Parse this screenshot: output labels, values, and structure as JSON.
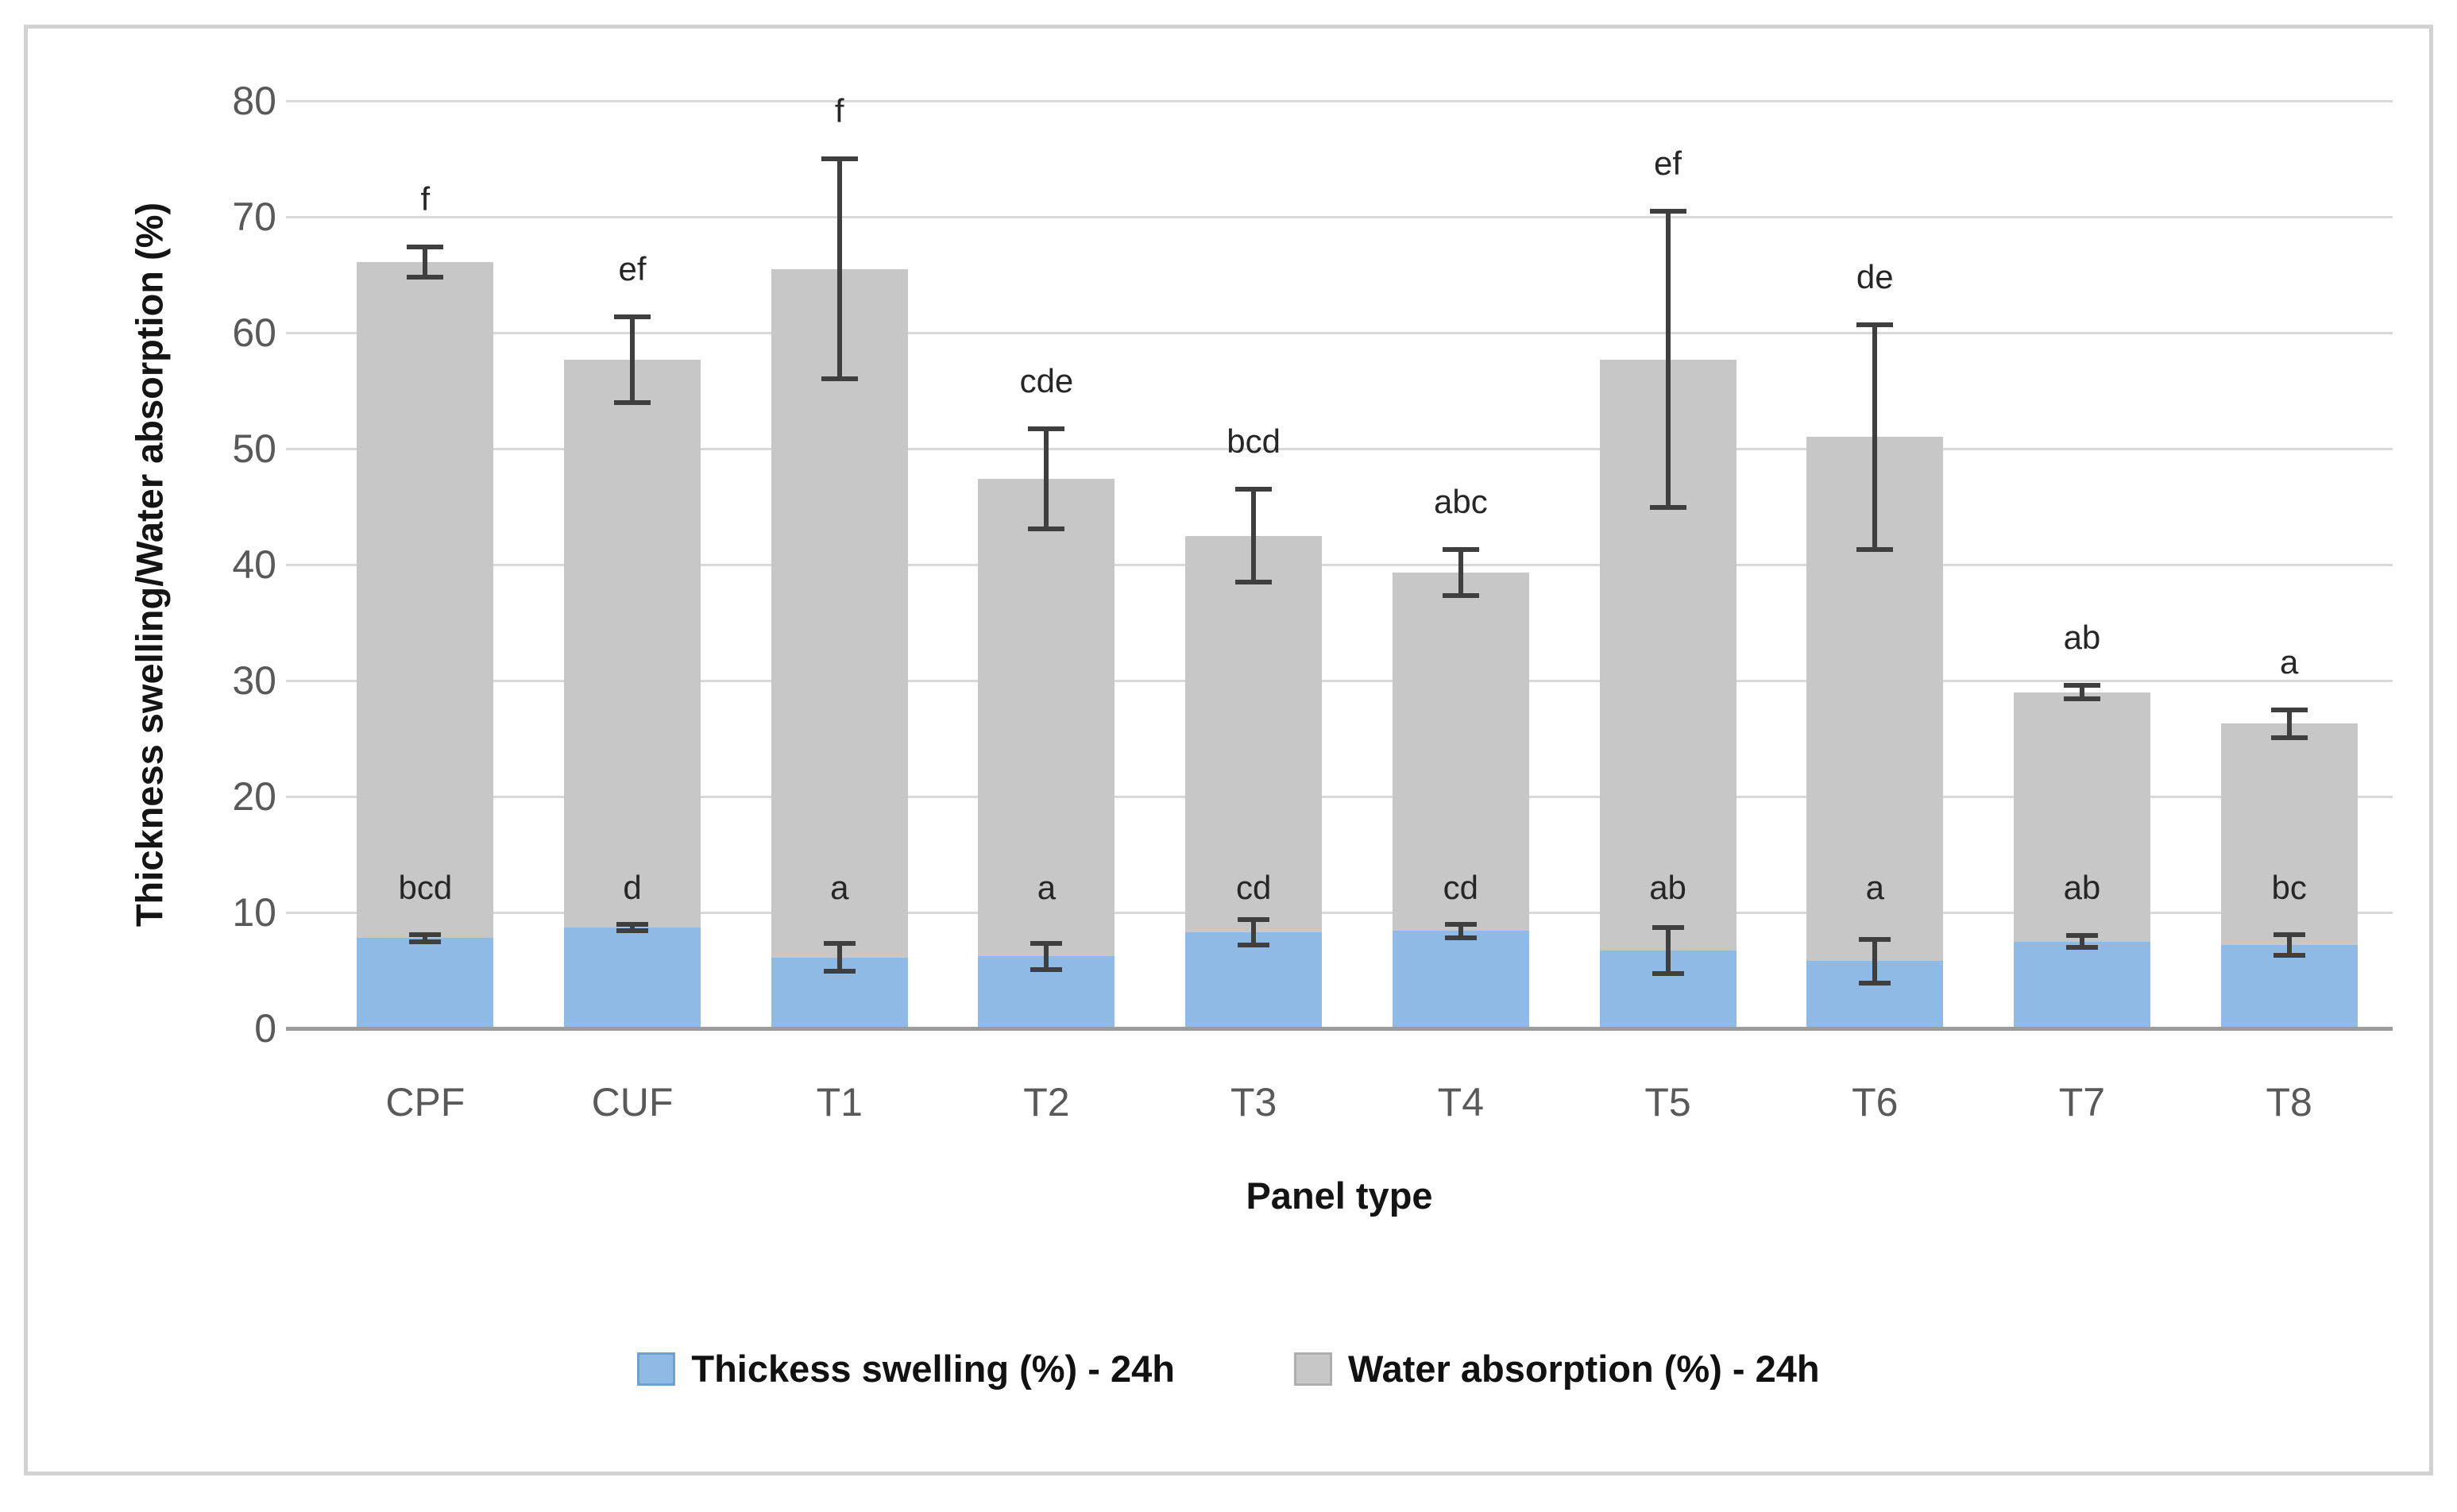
{
  "chart_data": {
    "type": "bar",
    "variant": "overlapped-column-chart-with-error-bars-and-significance-letters",
    "title": "",
    "xlabel": "Panel type",
    "ylabel": "Thickness swelling/Water absorption (%)",
    "categories": [
      "CPF",
      "CUF",
      "T1",
      "T2",
      "T3",
      "T4",
      "T5",
      "T6",
      "T7",
      "T8"
    ],
    "ylim": [
      0,
      80
    ],
    "yticks": [
      0,
      10,
      20,
      30,
      40,
      50,
      60,
      70,
      80
    ],
    "grid": true,
    "legend_position": "bottom-center",
    "series": [
      {
        "name": "Thickess swelling (%) - 24h",
        "color": "#8fbae5",
        "values": [
          7.8,
          8.7,
          6.1,
          6.2,
          8.3,
          8.4,
          6.7,
          5.8,
          7.5,
          7.2
        ],
        "error_bars": [
          0.3,
          0.3,
          1.2,
          1.1,
          1.1,
          0.6,
          2.0,
          1.9,
          0.5,
          0.9
        ],
        "sig_letters": [
          "bcd",
          "d",
          "a",
          "a",
          "cd",
          "cd",
          "ab",
          "a",
          "ab",
          "bc"
        ]
      },
      {
        "name": "Water absorption (%) - 24h",
        "color": "#c7c7c7",
        "values": [
          66.1,
          57.7,
          65.5,
          47.4,
          42.5,
          39.3,
          57.7,
          51.0,
          29.0,
          26.3
        ],
        "error_bars": [
          1.3,
          3.7,
          9.5,
          4.3,
          4.0,
          2.0,
          12.8,
          9.7,
          0.6,
          1.2
        ],
        "sig_letters": [
          "f",
          "ef",
          "f",
          "cde",
          "bcd",
          "abc",
          "ef",
          "de",
          "ab",
          "a"
        ]
      }
    ]
  },
  "colors": {
    "thickness_swelling": "#8fbae5",
    "water_absorption": "#c7c7c7",
    "error_bar": "#3f3f3f",
    "gridline": "#d9d9d9",
    "axis_line": "#9c9c9c",
    "tick_label": "#595959",
    "sig_letter": "#262626",
    "background": "#ffffff",
    "frame_border": "#d2d2d2",
    "legend_swatch_blue_border": "#6fa0ce",
    "legend_swatch_gray_border": "#adadad"
  }
}
